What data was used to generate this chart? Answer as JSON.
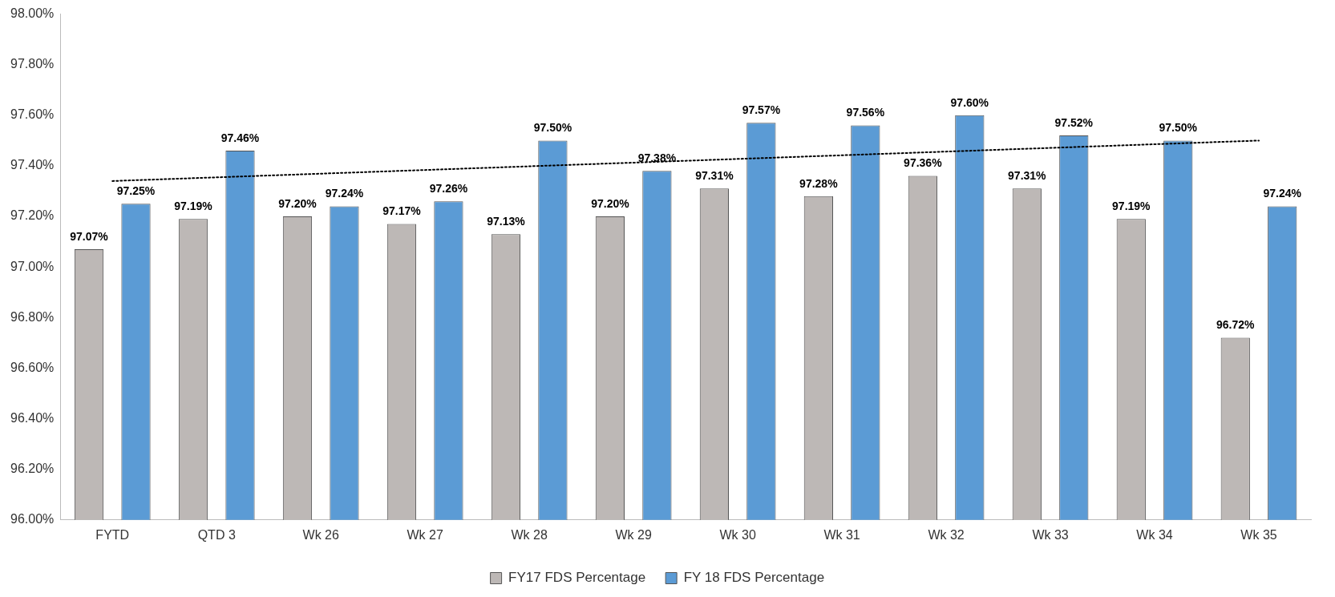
{
  "chart_data": {
    "type": "bar",
    "categories": [
      "FYTD",
      "QTD 3",
      "Wk 26",
      "Wk 27",
      "Wk 28",
      "Wk 29",
      "Wk 30",
      "Wk 31",
      "Wk 32",
      "Wk 33",
      "Wk 34",
      "Wk 35"
    ],
    "series": [
      {
        "name": "FY17 FDS Percentage",
        "color": "#bdb8b6",
        "values": [
          97.07,
          97.19,
          97.2,
          97.17,
          97.13,
          97.2,
          97.31,
          97.28,
          97.36,
          97.31,
          97.19,
          96.72
        ],
        "value_labels": [
          "97.07%",
          "97.19%",
          "97.20%",
          "97.17%",
          "97.13%",
          "97.20%",
          "97.31%",
          "97.28%",
          "97.36%",
          "97.31%",
          "97.19%",
          "96.72%"
        ]
      },
      {
        "name": "FY 18 FDS Percentage",
        "color": "#5b9bd5",
        "values": [
          97.25,
          97.46,
          97.24,
          97.26,
          97.5,
          97.38,
          97.57,
          97.56,
          97.6,
          97.52,
          97.5,
          97.24
        ],
        "value_labels": [
          "97.25%",
          "97.46%",
          "97.24%",
          "97.26%",
          "97.50%",
          "97.38%",
          "97.57%",
          "97.56%",
          "97.60%",
          "97.52%",
          "97.50%",
          "97.24%"
        ]
      },
      {
        "type": "line",
        "color": "#000000",
        "line_style": "dotted",
        "marker": "none",
        "x": [
          "FYTD",
          "Wk 35"
        ],
        "values": [
          97.34,
          97.5
        ]
      }
    ],
    "ylim": [
      96,
      98
    ],
    "yticks": [
      {
        "value": 96,
        "label": "96.00%"
      },
      {
        "value": 96.2,
        "label": "96.20%"
      },
      {
        "value": 96.4,
        "label": "96.40%"
      },
      {
        "value": 96.6,
        "label": "96.60%"
      },
      {
        "value": 96.8,
        "label": "96.80%"
      },
      {
        "value": 97,
        "label": "97.00%"
      },
      {
        "value": 97.2,
        "label": "97.20%"
      },
      {
        "value": 97.4,
        "label": "97.40%"
      },
      {
        "value": 97.6,
        "label": "97.60%"
      },
      {
        "value": 97.8,
        "label": "97.80%"
      },
      {
        "value": 98,
        "label": "98.00%"
      }
    ],
    "grid": false,
    "legend": "bottom"
  }
}
